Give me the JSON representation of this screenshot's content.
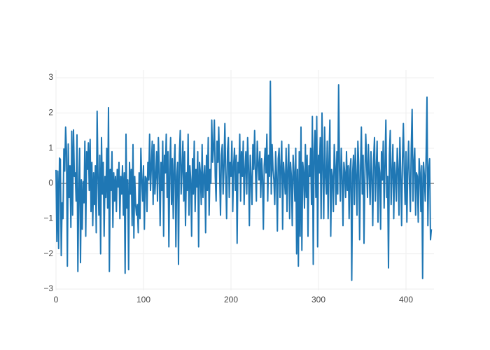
{
  "chart_data": {
    "type": "line",
    "series": [
      {
        "color": "#1f77b4",
        "values": [
          0.38,
          -1.65,
          0.35,
          -1.85,
          0.72,
          0.68,
          -2.05,
          -0.55,
          -1.0,
          0.98,
          0.35,
          1.6,
          0.9,
          -2.35,
          1.12,
          -0.4,
          0.5,
          -1.25,
          1.48,
          -0.9,
          1.52,
          0.2,
          0.3,
          -0.5,
          1.38,
          -2.5,
          -0.2,
          1.0,
          -2.25,
          0.1,
          -1.3,
          0.05,
          -0.55,
          1.2,
          -1.5,
          0.9,
          0.4,
          1.15,
          -0.2,
          1.25,
          -0.8,
          0.6,
          -1.2,
          0.3,
          -0.6,
          0.5,
          -1.4,
          2.05,
          0.2,
          -0.9,
          0.8,
          -2.0,
          1.3,
          -0.3,
          0.6,
          -1.5,
          0.2,
          -0.4,
          1.0,
          -0.7,
          2.15,
          -2.5,
          0.4,
          -0.2,
          0.9,
          -1.25,
          0.3,
          -0.5,
          0.2,
          -0.8,
          0.4,
          -0.1,
          0.6,
          -1.0,
          0.2,
          -0.3,
          0.5,
          -0.9,
          0.3,
          -2.55,
          1.4,
          -0.7,
          0.1,
          -2.45,
          0.6,
          -0.3,
          0.4,
          -1.2,
          1.1,
          -1.55,
          0.2,
          -0.6,
          -0.9,
          -0.6,
          -1.4,
          0.3,
          -1.0,
          1.0,
          0.1,
          -0.5,
          0.5,
          -1.3,
          0.2,
          0.15,
          -0.8,
          0.6,
          0.1,
          1.4,
          -0.2,
          0.5,
          1.2,
          -0.6,
          1.1,
          -0.3,
          0.2,
          0.9,
          -0.5,
          1.3,
          0.4,
          -1.2,
          0.6,
          -0.2,
          1.2,
          -1.5,
          0.8,
          0.3,
          1.4,
          -0.4,
          0.9,
          -1.8,
          0.4,
          1.3,
          -0.6,
          0.7,
          -1.0,
          0.5,
          1.1,
          -1.8,
          0.2,
          0.6,
          -2.3,
          0.8,
          1.5,
          -0.3,
          0.4,
          1.2,
          -0.5,
          0.9,
          -1.2,
          0.3,
          -0.2,
          1.4,
          -0.9,
          0.5,
          0.1,
          -1.5,
          0.7,
          -0.3,
          1.2,
          -0.8,
          0.4,
          -0.1,
          0.9,
          -1.8,
          0.6,
          0.3,
          -0.6,
          1.1,
          -0.4,
          0.2,
          0.5,
          -1.4,
          0.8,
          -0.2,
          1.3,
          -0.9,
          0.4,
          0.0,
          1.8,
          0.6,
          1.0,
          1.8,
          0.2,
          -0.5,
          1.2,
          0.6,
          1.6,
          0.3,
          -0.9,
          0.8,
          1.1,
          -0.3,
          0.5,
          1.7,
          0.2,
          -1.0,
          0.9,
          1.3,
          -0.4,
          0.6,
          0.2,
          1.2,
          -0.8,
          0.5,
          1.0,
          -0.2,
          0.8,
          -1.7,
          0.6,
          0.3,
          1.4,
          -0.5,
          0.9,
          0.2,
          1.2,
          -0.6,
          0.4,
          0.9,
          -0.3,
          1.3,
          0.5,
          -1.2,
          0.8,
          0.1,
          -0.6,
          1.1,
          0.4,
          1.5,
          0.3,
          -0.5,
          1.2,
          0.6,
          0.1,
          0.9,
          -0.4,
          0.7,
          0.2,
          -1.3,
          0.5,
          1.0,
          0.3,
          1.4,
          -0.5,
          0.8,
          0.2,
          2.9,
          -0.3,
          1.1,
          0.4,
          0.1,
          -0.6,
          0.9,
          0.3,
          -1.35,
          0.7,
          1.0,
          -0.4,
          0.5,
          1.2,
          -1.3,
          0.6,
          0.2,
          -0.3,
          1.0,
          -0.8,
          0.4,
          1.1,
          -1.0,
          0.6,
          0.2,
          -1.2,
          0.8,
          0.3,
          -0.5,
          1.0,
          -2.0,
          0.4,
          -2.35,
          0.9,
          -1.5,
          1.6,
          -1.9,
          0.6,
          0.3,
          -0.7,
          1.1,
          -0.4,
          0.8,
          -1.5,
          0.5,
          0.2,
          1.0,
          -0.6,
          1.9,
          -2.3,
          0.9,
          1.5,
          -0.4,
          1.9,
          -1.8,
          0.8,
          0.3,
          1.3,
          -1.0,
          2.0,
          0.5,
          -1.0,
          1.6,
          0.2,
          -0.3,
          1.2,
          -1.0,
          0.6,
          1.8,
          -1.5,
          0.4,
          0.2,
          -0.8,
          1.1,
          0.5,
          -0.6,
          0.9,
          -0.3,
          2.8,
          0.4,
          -0.5,
          1.0,
          0.2,
          -1.2,
          0.6,
          0.3,
          -0.4,
          0.9,
          -0.2,
          0.5,
          -1.0,
          0.4,
          0.7,
          -2.75,
          0.3,
          0.8,
          -0.6,
          1.0,
          0.2,
          -0.9,
          1.2,
          0.5,
          -1.6,
          0.4,
          1.6,
          -0.3,
          0.8,
          -1.7,
          0.2,
          1.4,
          0.6,
          -0.4,
          1.1,
          0.3,
          -0.6,
          0.9,
          0.2,
          -1.2,
          0.7,
          1.3,
          -0.5,
          0.4,
          1.2,
          -1.1,
          0.6,
          0.3,
          -1.3,
          0.9,
          0.1,
          1.2,
          -0.7,
          0.5,
          1.8,
          -0.4,
          0.2,
          -2.4,
          0.8,
          1.5,
          -0.6,
          0.3,
          1.1,
          -1.0,
          0.6,
          0.2,
          -0.5,
          1.0,
          0.4,
          -0.9,
          1.3,
          0.2,
          -1.2,
          0.7,
          1.7,
          0.3,
          -0.6,
          0.9,
          -1.1,
          0.4,
          1.2,
          0.0,
          -0.8,
          1.0,
          2.1,
          -0.5,
          0.6,
          1.0,
          -0.9,
          0.3,
          0.2,
          -1.1,
          0.7,
          0.3,
          -0.8,
          0.5,
          -2.7,
          0.6,
          0.2,
          -0.5,
          0.8,
          2.45,
          -1.2,
          0.4,
          0.7,
          -1.6,
          -1.3
        ]
      }
    ],
    "xlim": [
      0,
      432
    ],
    "xticks": [
      0,
      100,
      200,
      300,
      400
    ],
    "ylim": [
      -3.04,
      3.22
    ],
    "yticks": [
      {
        "value": -3,
        "label": "−3"
      },
      {
        "value": -2,
        "label": "−2"
      },
      {
        "value": -1,
        "label": "−1"
      },
      0,
      1,
      2,
      3
    ],
    "grid": true,
    "zeroline": true
  }
}
